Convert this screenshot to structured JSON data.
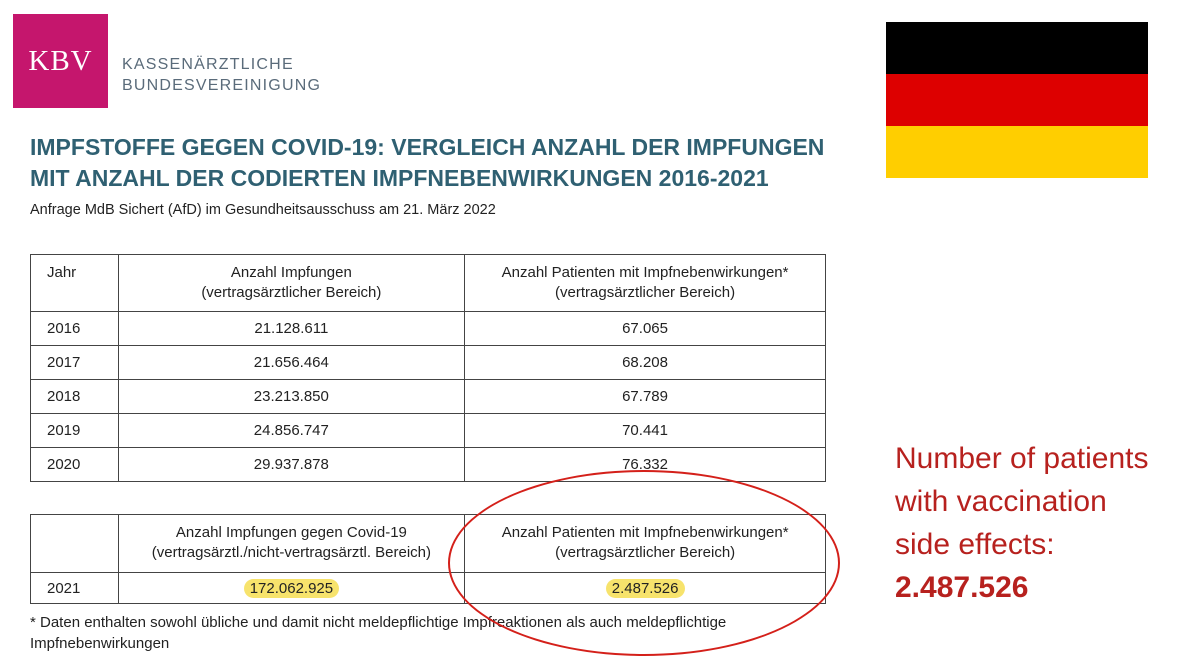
{
  "logo": {
    "abbr": "KBV",
    "line1": "KASSENÄRZTLICHE",
    "line2": "BUNDESVEREINIGUNG",
    "color": "#c5166d"
  },
  "title": {
    "line1": "IMPFSTOFFE GEGEN COVID-19: VERGLEICH ANZAHL DER IMPFUNGEN",
    "line2": "MIT ANZAHL DER CODIERTEN IMPFNEBENWIRKUNGEN 2016-2021"
  },
  "subtitle": "Anfrage MdB Sichert (AfD) im Gesundheitsausschuss am 21. März 2022",
  "table_main": {
    "headers": {
      "year": "Jahr",
      "vacc_line1": "Anzahl Impfungen",
      "vacc_line2": "(vertragsärztlicher Bereich)",
      "pat_line1": "Anzahl Patienten mit Impfnebenwirkungen*",
      "pat_line2": "(vertragsärztlicher Bereich)"
    },
    "rows": [
      {
        "year": "2016",
        "vaccinations": "21.128.611",
        "patients": "67.065"
      },
      {
        "year": "2017",
        "vaccinations": "21.656.464",
        "patients": "68.208"
      },
      {
        "year": "2018",
        "vaccinations": "23.213.850",
        "patients": "67.789"
      },
      {
        "year": "2019",
        "vaccinations": "24.856.747",
        "patients": "70.441"
      },
      {
        "year": "2020",
        "vaccinations": "29.937.878",
        "patients": "76.332"
      }
    ]
  },
  "table_covid": {
    "headers": {
      "vacc_line1": "Anzahl Impfungen gegen Covid-19",
      "vacc_line2": "(vertragsärztl./nicht-vertragsärztl. Bereich)",
      "pat_line1": "Anzahl Patienten mit Impfnebenwirkungen*",
      "pat_line2": "(vertragsärztlicher Bereich)"
    },
    "row": {
      "year": "2021",
      "vaccinations": "172.062.925",
      "patients": "2.487.526"
    }
  },
  "footnote": {
    "line1": "* Daten enthalten sowohl übliche und damit nicht meldepflichtige Impfreaktionen als auch meldepflichtige",
    "line2": "Impfnebenwirkungen"
  },
  "flag": {
    "stripes": [
      "#000000",
      "#dd0000",
      "#ffce00"
    ]
  },
  "annotation": {
    "line1": "Number of patients",
    "line2": "with vaccination",
    "line3": "side effects:",
    "value": "2.487.526",
    "color": "#b7211e"
  }
}
